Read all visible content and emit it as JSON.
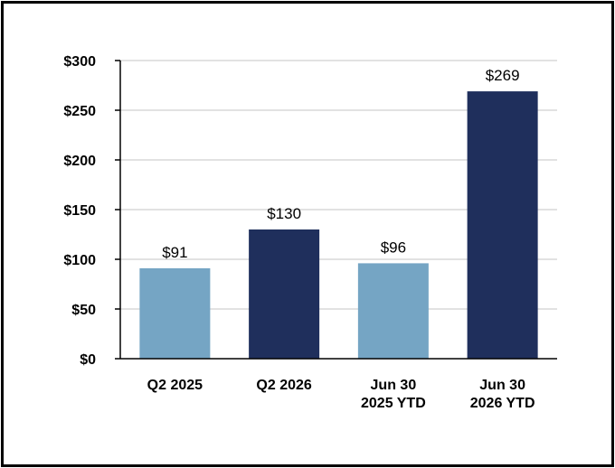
{
  "chart_data": {
    "type": "bar",
    "categories": [
      [
        "Q2 2025"
      ],
      [
        "Q2 2026"
      ],
      [
        "Jun 30",
        "2025 YTD"
      ],
      [
        "Jun 30",
        "2026 YTD"
      ]
    ],
    "values": [
      91,
      130,
      96,
      269
    ],
    "data_labels": [
      "$91",
      "$130",
      "$96",
      "$269"
    ],
    "bar_colors": [
      "#75a5c4",
      "#1f2f5c",
      "#75a5c4",
      "#1f2f5c"
    ],
    "ylim": [
      0,
      300
    ],
    "yticks": [
      0,
      50,
      100,
      150,
      200,
      250,
      300
    ],
    "ytick_labels": [
      "$0",
      "$50",
      "$100",
      "$150",
      "$200",
      "$250",
      "$300"
    ],
    "grid": true,
    "grid_color": "#d9d9d9",
    "axis_color": "#000000",
    "title": "",
    "xlabel": "",
    "ylabel": ""
  }
}
